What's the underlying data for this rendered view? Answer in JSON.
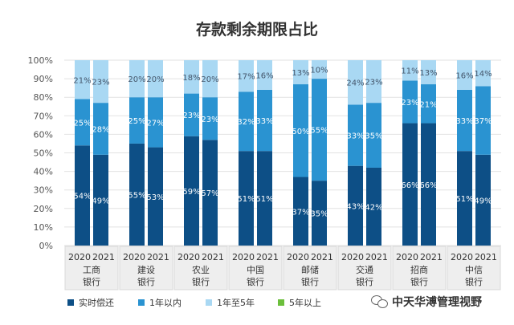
{
  "chart_data": {
    "type": "bar",
    "stacked": true,
    "title": "存款剩余期限占比",
    "ylim": [
      0,
      100
    ],
    "yticks": [
      "0%",
      "10%",
      "20%",
      "30%",
      "40%",
      "50%",
      "60%",
      "70%",
      "80%",
      "90%",
      "100%"
    ],
    "banks": [
      {
        "name_line1": "工商",
        "name_line2": "银行"
      },
      {
        "name_line1": "建设",
        "name_line2": "银行"
      },
      {
        "name_line1": "农业",
        "name_line2": "银行"
      },
      {
        "name_line1": "中国",
        "name_line2": "银行"
      },
      {
        "name_line1": "邮储",
        "name_line2": "银行"
      },
      {
        "name_line1": "交通",
        "name_line2": "银行"
      },
      {
        "name_line1": "招商",
        "name_line2": "银行"
      },
      {
        "name_line1": "中信",
        "name_line2": "银行"
      }
    ],
    "years": [
      "2020",
      "2021"
    ],
    "categories": [
      "工商银行 2020",
      "工商银行 2021",
      "建设银行 2020",
      "建设银行 2021",
      "农业银行 2020",
      "农业银行 2021",
      "中国银行 2020",
      "中国银行 2021",
      "邮储银行 2020",
      "邮储银行 2021",
      "交通银行 2020",
      "交通银行 2021",
      "招商银行 2020",
      "招商银行 2021",
      "中信银行 2020",
      "中信银行 2021"
    ],
    "series": [
      {
        "name": "实时偿还",
        "color": "#0d4f86",
        "values": [
          54,
          49,
          55,
          53,
          59,
          57,
          51,
          51,
          37,
          35,
          43,
          42,
          66,
          66,
          51,
          49
        ],
        "labels": [
          "54%",
          "49%",
          "55%",
          "53%",
          "59%",
          "57%",
          "51%",
          "51%",
          "37%",
          "35%",
          "43%",
          "42%",
          "66%",
          "66%",
          "51%",
          "49%"
        ]
      },
      {
        "name": "1年以内",
        "color": "#2a93d1",
        "values": [
          25,
          28,
          25,
          27,
          23,
          23,
          32,
          33,
          50,
          55,
          33,
          35,
          23,
          21,
          33,
          37
        ],
        "labels": [
          "25%",
          "28%",
          "25%",
          "27%",
          "23%",
          "23%",
          "32%",
          "33%",
          "50%",
          "55%",
          "33%",
          "35%",
          "23%",
          "21%",
          "33%",
          "37%"
        ]
      },
      {
        "name": "1年至5年",
        "color": "#a9d8f3",
        "values": [
          21,
          23,
          20,
          20,
          18,
          20,
          17,
          16,
          13,
          10,
          24,
          23,
          11,
          13,
          16,
          14
        ],
        "labels": [
          "21%",
          "23%",
          "20%",
          "20%",
          "18%",
          "20%",
          "17%",
          "16%",
          "13%",
          "10%",
          "24%",
          "23%",
          "11%",
          "13%",
          "16%",
          "14%"
        ]
      },
      {
        "name": "5年以上",
        "color": "#6cbf3c",
        "values": [
          0,
          0,
          0,
          0,
          0,
          0,
          0,
          0,
          0,
          0,
          0,
          0,
          0,
          0,
          0,
          0
        ]
      }
    ],
    "legend_position": "bottom-left",
    "grid": true
  },
  "watermark": "中天华溥管理视野"
}
